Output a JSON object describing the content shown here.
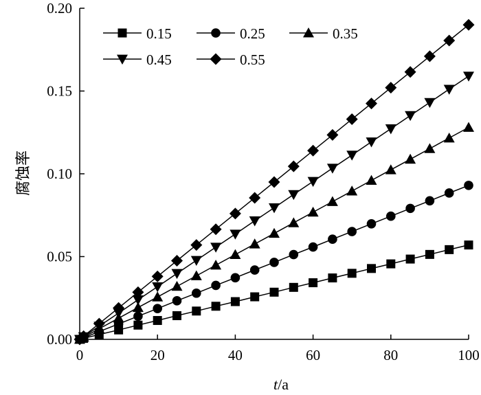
{
  "chart_data": {
    "type": "line",
    "xlabel_var": "t",
    "xlabel_unit": "/a",
    "ylabel": "腐蚀率",
    "xlim": [
      0,
      100
    ],
    "ylim": [
      0,
      0.2
    ],
    "xticks": [
      "0",
      "20",
      "40",
      "60",
      "80",
      "100"
    ],
    "yticks": [
      "0.00",
      "0.05",
      "0.10",
      "0.15",
      "0.20"
    ],
    "grid": false,
    "legend_position": "top-left",
    "x": [
      0,
      1,
      5,
      10,
      15,
      20,
      25,
      30,
      35,
      40,
      45,
      50,
      55,
      60,
      65,
      70,
      75,
      80,
      85,
      90,
      95,
      100
    ],
    "series": [
      {
        "name": "0.15",
        "marker": "square",
        "values": [
          0,
          0.0006,
          0.0029,
          0.0057,
          0.0086,
          0.0114,
          0.0143,
          0.0171,
          0.02,
          0.0228,
          0.0257,
          0.0285,
          0.0314,
          0.0342,
          0.0371,
          0.0399,
          0.0428,
          0.0456,
          0.0485,
          0.0513,
          0.0542,
          0.057
        ]
      },
      {
        "name": "0.25",
        "marker": "circle",
        "values": [
          0,
          0.0009,
          0.0047,
          0.0093,
          0.014,
          0.0186,
          0.0233,
          0.0279,
          0.0326,
          0.0372,
          0.0419,
          0.0465,
          0.0512,
          0.0558,
          0.0605,
          0.0651,
          0.0698,
          0.0744,
          0.0791,
          0.0837,
          0.0884,
          0.093
        ]
      },
      {
        "name": "0.35",
        "marker": "triangle-up",
        "values": [
          0,
          0.0013,
          0.0064,
          0.0128,
          0.0192,
          0.0256,
          0.032,
          0.0384,
          0.0448,
          0.0512,
          0.0576,
          0.064,
          0.0704,
          0.0768,
          0.0832,
          0.0896,
          0.096,
          0.1024,
          0.1088,
          0.1152,
          0.1216,
          0.128
        ]
      },
      {
        "name": "0.45",
        "marker": "triangle-down",
        "values": [
          0,
          0.0016,
          0.008,
          0.0159,
          0.0239,
          0.0318,
          0.0398,
          0.0477,
          0.0557,
          0.0636,
          0.0716,
          0.0795,
          0.0875,
          0.0954,
          0.1034,
          0.1113,
          0.1193,
          0.1272,
          0.1352,
          0.1431,
          0.1511,
          0.159
        ]
      },
      {
        "name": "0.55",
        "marker": "diamond",
        "values": [
          0,
          0.0019,
          0.0095,
          0.019,
          0.0285,
          0.038,
          0.0475,
          0.057,
          0.0665,
          0.076,
          0.0855,
          0.095,
          0.1045,
          0.114,
          0.1235,
          0.133,
          0.1425,
          0.152,
          0.1615,
          0.171,
          0.1805,
          0.19
        ]
      }
    ]
  }
}
